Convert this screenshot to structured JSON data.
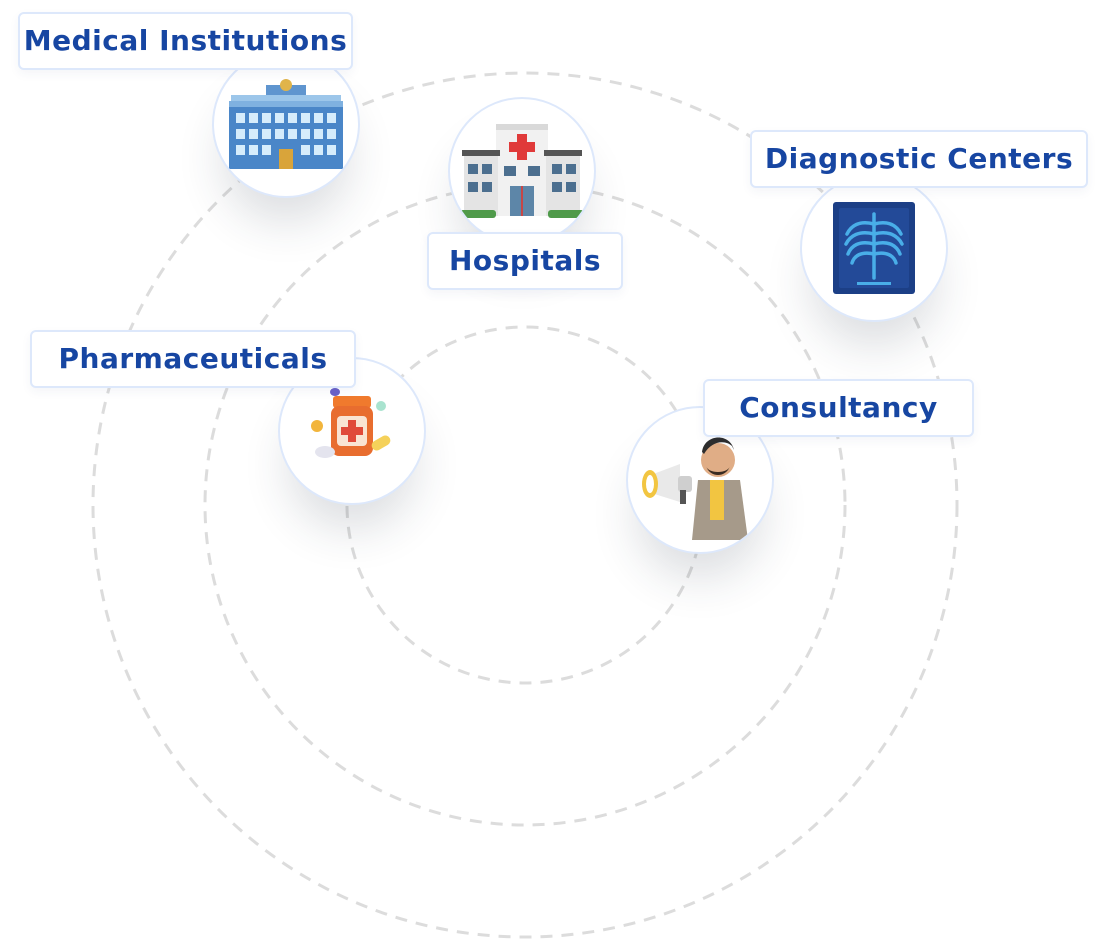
{
  "nodes": [
    {
      "id": "medical-institutions",
      "label": "Medical Institutions",
      "icon": "building-icon"
    },
    {
      "id": "hospitals",
      "label": "Hospitals",
      "icon": "hospital-icon"
    },
    {
      "id": "diagnostic-centers",
      "label": "Diagnostic Centers",
      "icon": "xray-icon"
    },
    {
      "id": "pharmaceuticals",
      "label": "Pharmaceuticals",
      "icon": "medicine-bottle-icon"
    },
    {
      "id": "consultancy",
      "label": "Consultancy",
      "icon": "megaphone-person-icon"
    }
  ],
  "colors": {
    "label_text": "#1746a2",
    "border": "#dde8fb",
    "ring": "#dcdcdc"
  }
}
